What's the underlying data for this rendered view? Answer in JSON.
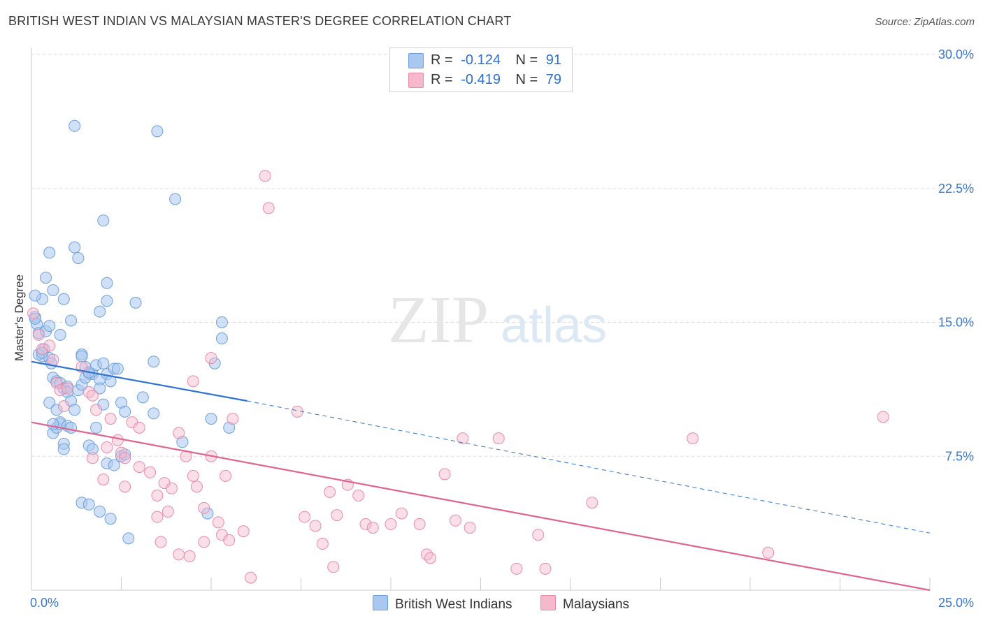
{
  "title": "BRITISH WEST INDIAN VS MALAYSIAN MASTER'S DEGREE CORRELATION CHART",
  "source": "Source: ZipAtlas.com",
  "watermark": {
    "zip": "ZIP",
    "atlas": "atlas"
  },
  "legend": {
    "rows": [
      {
        "r_label": "R =",
        "r_value": "-0.124",
        "n_label": "N =",
        "n_value": "91"
      },
      {
        "r_label": "R =",
        "r_value": "-0.419",
        "n_label": "N =",
        "n_value": "79"
      }
    ]
  },
  "bottom_legend": {
    "series1": "British West Indians",
    "series2": "Malaysians"
  },
  "colors": {
    "blue_fill": "#a9c8f0",
    "blue_stroke": "#6d9fdc",
    "blue_line": "#2f74d0",
    "pink_fill": "#f6b8cb",
    "pink_stroke": "#e98aa8",
    "pink_line": "#e0648e",
    "tick_text": "#3b78c8",
    "grid": "#d9d9d9"
  },
  "chart_data": {
    "type": "scatter",
    "title": "BRITISH WEST INDIAN VS MALAYSIAN MASTER'S DEGREE CORRELATION CHART",
    "xlabel": "",
    "ylabel": "Master's Degree",
    "xlim": [
      0,
      25
    ],
    "ylim": [
      0,
      30
    ],
    "x_tick_labels": [
      "0.0%",
      "25.0%"
    ],
    "y_tick_labels": [
      "7.5%",
      "15.0%",
      "22.5%",
      "30.0%"
    ],
    "y_ticks": [
      7.5,
      15,
      22.5,
      30
    ],
    "grid": "horizontal dashed",
    "series": [
      {
        "name": "British West Indians",
        "r": -0.124,
        "n": 91,
        "trend": {
          "x": [
            0,
            6
          ],
          "y": [
            12.8,
            10.6
          ],
          "dashed_to": [
            25,
            3.2
          ]
        },
        "points": [
          [
            0.1,
            15.3
          ],
          [
            0.15,
            14.9
          ],
          [
            0.2,
            14.4
          ],
          [
            0.3,
            13.1
          ],
          [
            0.35,
            13.5
          ],
          [
            0.4,
            14.5
          ],
          [
            0.5,
            14.8
          ],
          [
            0.4,
            17.5
          ],
          [
            0.5,
            18.9
          ],
          [
            0.6,
            16.8
          ],
          [
            0.3,
            16.3
          ],
          [
            0.5,
            13.0
          ],
          [
            0.55,
            12.7
          ],
          [
            0.6,
            11.9
          ],
          [
            0.7,
            11.7
          ],
          [
            0.8,
            11.6
          ],
          [
            0.9,
            11.3
          ],
          [
            1.0,
            11.4
          ],
          [
            1.0,
            11.1
          ],
          [
            1.1,
            10.6
          ],
          [
            0.8,
            14.3
          ],
          [
            0.9,
            16.3
          ],
          [
            1.1,
            15.1
          ],
          [
            1.2,
            19.2
          ],
          [
            1.3,
            18.6
          ],
          [
            1.4,
            13.2
          ],
          [
            1.5,
            12.5
          ],
          [
            1.6,
            12.1
          ],
          [
            1.7,
            12.1
          ],
          [
            1.8,
            12.6
          ],
          [
            1.9,
            11.8
          ],
          [
            2.0,
            12.7
          ],
          [
            2.1,
            12.1
          ],
          [
            2.2,
            11.7
          ],
          [
            2.3,
            12.4
          ],
          [
            2.4,
            12.4
          ],
          [
            2.5,
            10.5
          ],
          [
            2.6,
            10.0
          ],
          [
            1.2,
            26.0
          ],
          [
            3.5,
            25.7
          ],
          [
            4.0,
            21.9
          ],
          [
            2.0,
            20.7
          ],
          [
            2.1,
            17.2
          ],
          [
            2.1,
            16.2
          ],
          [
            1.9,
            15.6
          ],
          [
            2.9,
            16.1
          ],
          [
            0.5,
            10.5
          ],
          [
            0.6,
            8.8
          ],
          [
            0.7,
            9.1
          ],
          [
            0.7,
            10.1
          ],
          [
            0.8,
            9.3
          ],
          [
            0.8,
            9.4
          ],
          [
            0.9,
            8.2
          ],
          [
            1.0,
            9.2
          ],
          [
            1.1,
            9.1
          ],
          [
            1.2,
            10.1
          ],
          [
            1.3,
            11.2
          ],
          [
            1.4,
            11.5
          ],
          [
            1.5,
            11.9
          ],
          [
            1.6,
            8.1
          ],
          [
            1.7,
            7.9
          ],
          [
            1.8,
            9.1
          ],
          [
            1.9,
            11.3
          ],
          [
            2.0,
            10.4
          ],
          [
            2.1,
            7.1
          ],
          [
            2.3,
            7.0
          ],
          [
            2.5,
            7.5
          ],
          [
            2.6,
            7.6
          ],
          [
            3.1,
            10.8
          ],
          [
            3.4,
            9.9
          ],
          [
            3.4,
            12.8
          ],
          [
            5.3,
            15.0
          ],
          [
            5.3,
            14.1
          ],
          [
            5.1,
            12.7
          ],
          [
            5.0,
            9.6
          ],
          [
            5.5,
            9.1
          ],
          [
            4.2,
            8.3
          ],
          [
            1.4,
            4.9
          ],
          [
            1.6,
            4.8
          ],
          [
            1.9,
            4.4
          ],
          [
            2.2,
            4.0
          ],
          [
            2.7,
            2.9
          ],
          [
            4.9,
            4.3
          ],
          [
            0.2,
            13.2
          ],
          [
            0.3,
            13.3
          ],
          [
            0.6,
            9.3
          ],
          [
            1.4,
            13.1
          ],
          [
            1.6,
            12.2
          ],
          [
            0.9,
            7.9
          ],
          [
            0.1,
            16.5
          ],
          [
            0.1,
            15.2
          ]
        ]
      },
      {
        "name": "Malaysians",
        "r": -0.419,
        "n": 79,
        "trend": {
          "x": [
            0,
            25
          ],
          "y": [
            9.4,
            0.0
          ]
        },
        "points": [
          [
            0.05,
            15.5
          ],
          [
            0.2,
            14.3
          ],
          [
            0.3,
            13.5
          ],
          [
            0.5,
            13.7
          ],
          [
            0.6,
            12.9
          ],
          [
            0.7,
            11.6
          ],
          [
            0.8,
            11.2
          ],
          [
            0.9,
            10.3
          ],
          [
            1.0,
            11.3
          ],
          [
            1.4,
            12.5
          ],
          [
            1.6,
            11.1
          ],
          [
            1.7,
            10.9
          ],
          [
            1.8,
            10.1
          ],
          [
            2.2,
            9.6
          ],
          [
            2.4,
            8.4
          ],
          [
            2.5,
            7.7
          ],
          [
            2.6,
            7.4
          ],
          [
            2.8,
            9.4
          ],
          [
            3.0,
            9.1
          ],
          [
            2.1,
            8.0
          ],
          [
            1.7,
            7.4
          ],
          [
            2.0,
            6.2
          ],
          [
            2.6,
            5.8
          ],
          [
            3.0,
            6.9
          ],
          [
            3.3,
            6.6
          ],
          [
            3.5,
            5.3
          ],
          [
            3.7,
            6.0
          ],
          [
            3.9,
            5.7
          ],
          [
            3.8,
            4.4
          ],
          [
            4.1,
            8.8
          ],
          [
            4.3,
            7.5
          ],
          [
            4.5,
            6.4
          ],
          [
            4.6,
            5.8
          ],
          [
            4.8,
            4.6
          ],
          [
            5.0,
            7.5
          ],
          [
            5.2,
            3.8
          ],
          [
            5.4,
            6.4
          ],
          [
            5.6,
            9.6
          ],
          [
            5.0,
            13.0
          ],
          [
            4.5,
            11.7
          ],
          [
            6.5,
            23.2
          ],
          [
            6.6,
            21.4
          ],
          [
            7.4,
            10.0
          ],
          [
            7.6,
            4.1
          ],
          [
            7.9,
            3.6
          ],
          [
            8.3,
            5.5
          ],
          [
            8.5,
            4.2
          ],
          [
            8.8,
            5.9
          ],
          [
            9.1,
            5.3
          ],
          [
            9.3,
            3.7
          ],
          [
            9.5,
            3.5
          ],
          [
            10.0,
            3.7
          ],
          [
            10.3,
            4.3
          ],
          [
            10.8,
            3.7
          ],
          [
            11.0,
            2.0
          ],
          [
            11.1,
            1.8
          ],
          [
            11.5,
            6.5
          ],
          [
            11.8,
            3.9
          ],
          [
            12.0,
            8.5
          ],
          [
            12.2,
            3.5
          ],
          [
            13.0,
            8.5
          ],
          [
            13.5,
            1.2
          ],
          [
            14.1,
            3.1
          ],
          [
            14.3,
            1.2
          ],
          [
            15.6,
            4.9
          ],
          [
            18.4,
            8.5
          ],
          [
            20.5,
            2.1
          ],
          [
            23.7,
            9.7
          ],
          [
            3.5,
            4.1
          ],
          [
            3.6,
            2.7
          ],
          [
            4.1,
            2.0
          ],
          [
            4.4,
            1.9
          ],
          [
            4.8,
            2.7
          ],
          [
            5.3,
            3.1
          ],
          [
            5.5,
            2.8
          ],
          [
            5.9,
            3.3
          ],
          [
            6.1,
            0.7
          ],
          [
            8.1,
            2.6
          ],
          [
            8.4,
            1.3
          ]
        ]
      }
    ]
  }
}
